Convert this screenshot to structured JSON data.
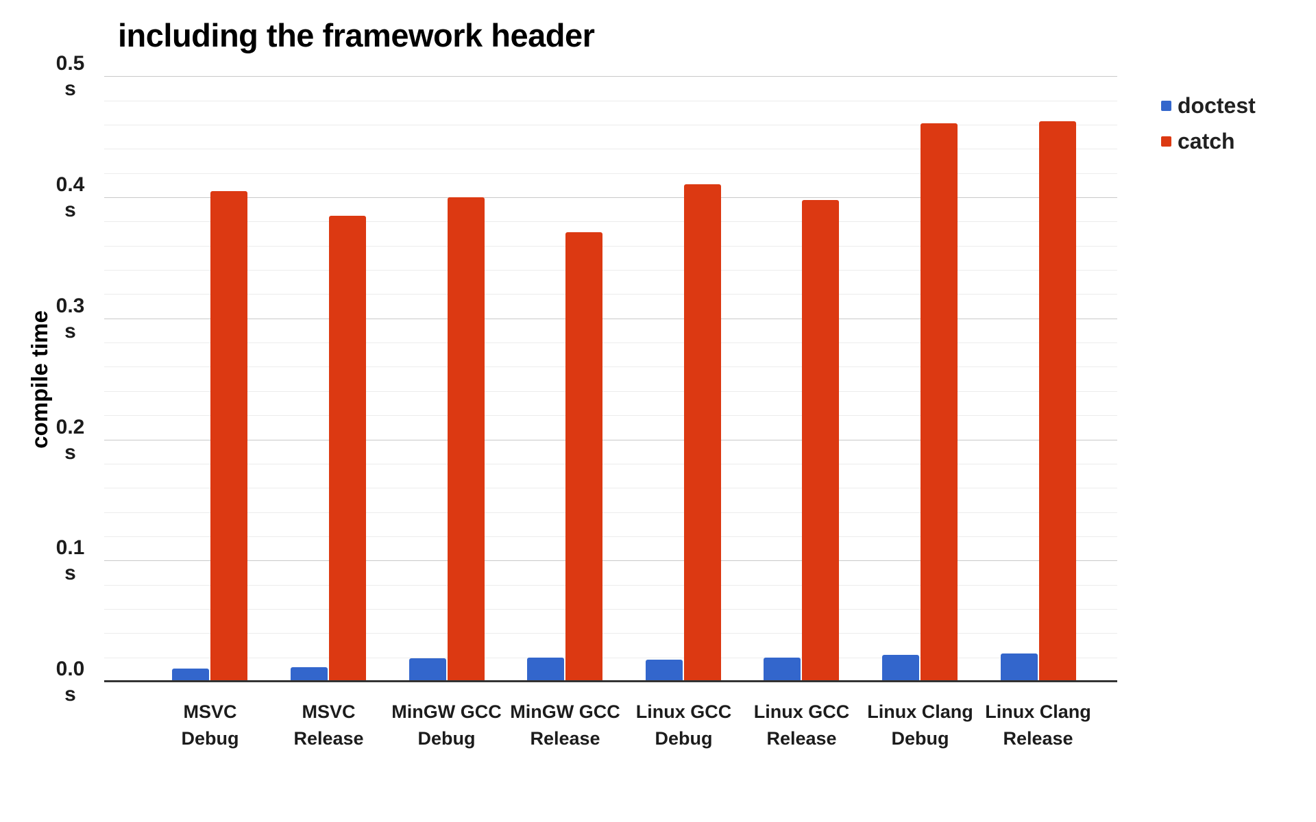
{
  "chart_data": {
    "type": "bar",
    "title": "including the framework header",
    "ylabel": "compile time",
    "y_unit": "s",
    "ylim": [
      0,
      0.5
    ],
    "y_major_step": 0.1,
    "y_minor_step": 0.02,
    "grid": true,
    "legend_position": "right",
    "categories": [
      {
        "line1": "MSVC",
        "line2": "Debug"
      },
      {
        "line1": "MSVC",
        "line2": "Release"
      },
      {
        "line1": "MinGW GCC",
        "line2": "Debug"
      },
      {
        "line1": "MinGW GCC",
        "line2": "Release"
      },
      {
        "line1": "Linux GCC",
        "line2": "Debug"
      },
      {
        "line1": "Linux GCC",
        "line2": "Release"
      },
      {
        "line1": "Linux Clang",
        "line2": "Debug"
      },
      {
        "line1": "Linux Clang",
        "line2": "Release"
      }
    ],
    "y_ticks": [
      {
        "label": "0.0",
        "unit": "s",
        "value": 0.0
      },
      {
        "label": "0.1",
        "unit": "s",
        "value": 0.1
      },
      {
        "label": "0.2",
        "unit": "s",
        "value": 0.2
      },
      {
        "label": "0.3",
        "unit": "s",
        "value": 0.3
      },
      {
        "label": "0.4",
        "unit": "s",
        "value": 0.4
      },
      {
        "label": "0.5",
        "unit": "s",
        "value": 0.5
      }
    ],
    "series": [
      {
        "name": "doctest",
        "color": "#3366CC",
        "values": [
          0.011,
          0.012,
          0.019,
          0.02,
          0.018,
          0.02,
          0.022,
          0.023
        ]
      },
      {
        "name": "catch",
        "color": "#DC3912",
        "values": [
          0.405,
          0.385,
          0.4,
          0.371,
          0.411,
          0.398,
          0.461,
          0.463
        ]
      }
    ]
  }
}
